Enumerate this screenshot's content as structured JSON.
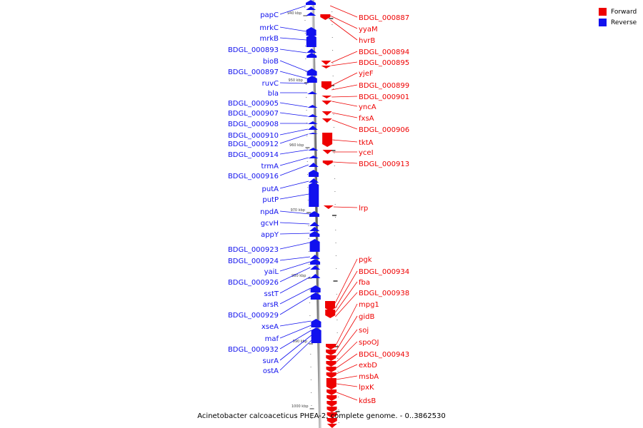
{
  "caption": "Acinetobacter calcoaceticus PHEA-2, complete genome. - 0..3862530",
  "legend": [
    {
      "label": "Forward",
      "color": "#ee0000"
    },
    {
      "label": "Reverse",
      "color": "#1111ee"
    }
  ],
  "colors": {
    "forward": "#ee0000",
    "reverse": "#1111ee",
    "axis": "#777777"
  },
  "ticks": [
    "940 kbp",
    "950 kbp",
    "960 kbp",
    "970 kbp",
    "980 kbp",
    "990 kbp",
    "1000 kbp"
  ],
  "reverse_genes": [
    "papC",
    "mrkC",
    "mrkB",
    "BDGL_000893",
    "bioB",
    "BDGL_000897",
    "ruvC",
    "bla",
    "BDGL_000905",
    "BDGL_000907",
    "BDGL_000908",
    "BDGL_000910",
    "BDGL_000912",
    "BDGL_000914",
    "trmA",
    "BDGL_000916",
    "putA",
    "putP",
    "npdA",
    "gcvH",
    "appY",
    "BDGL_000923",
    "BDGL_000924",
    "yaiL",
    "BDGL_000926",
    "sstT",
    "arsR",
    "BDGL_000929",
    "xseA",
    "maf",
    "BDGL_000932",
    "surA",
    "ostA"
  ],
  "forward_genes": [
    "BDGL_000887",
    "yyaM",
    "hvrB",
    "BDGL_000894",
    "BDGL_000895",
    "yjeF",
    "BDGL_000899",
    "BDGL_000901",
    "yncA",
    "fxsA",
    "BDGL_000906",
    "tktA",
    "yceI",
    "BDGL_000913",
    "lrp",
    "pgk",
    "BDGL_000934",
    "fba",
    "BDGL_000938",
    "mpg1",
    "gidB",
    "soj",
    "spoOJ",
    "BDGL_000943",
    "exbD",
    "msbA",
    "lpxK",
    "kdsB"
  ]
}
